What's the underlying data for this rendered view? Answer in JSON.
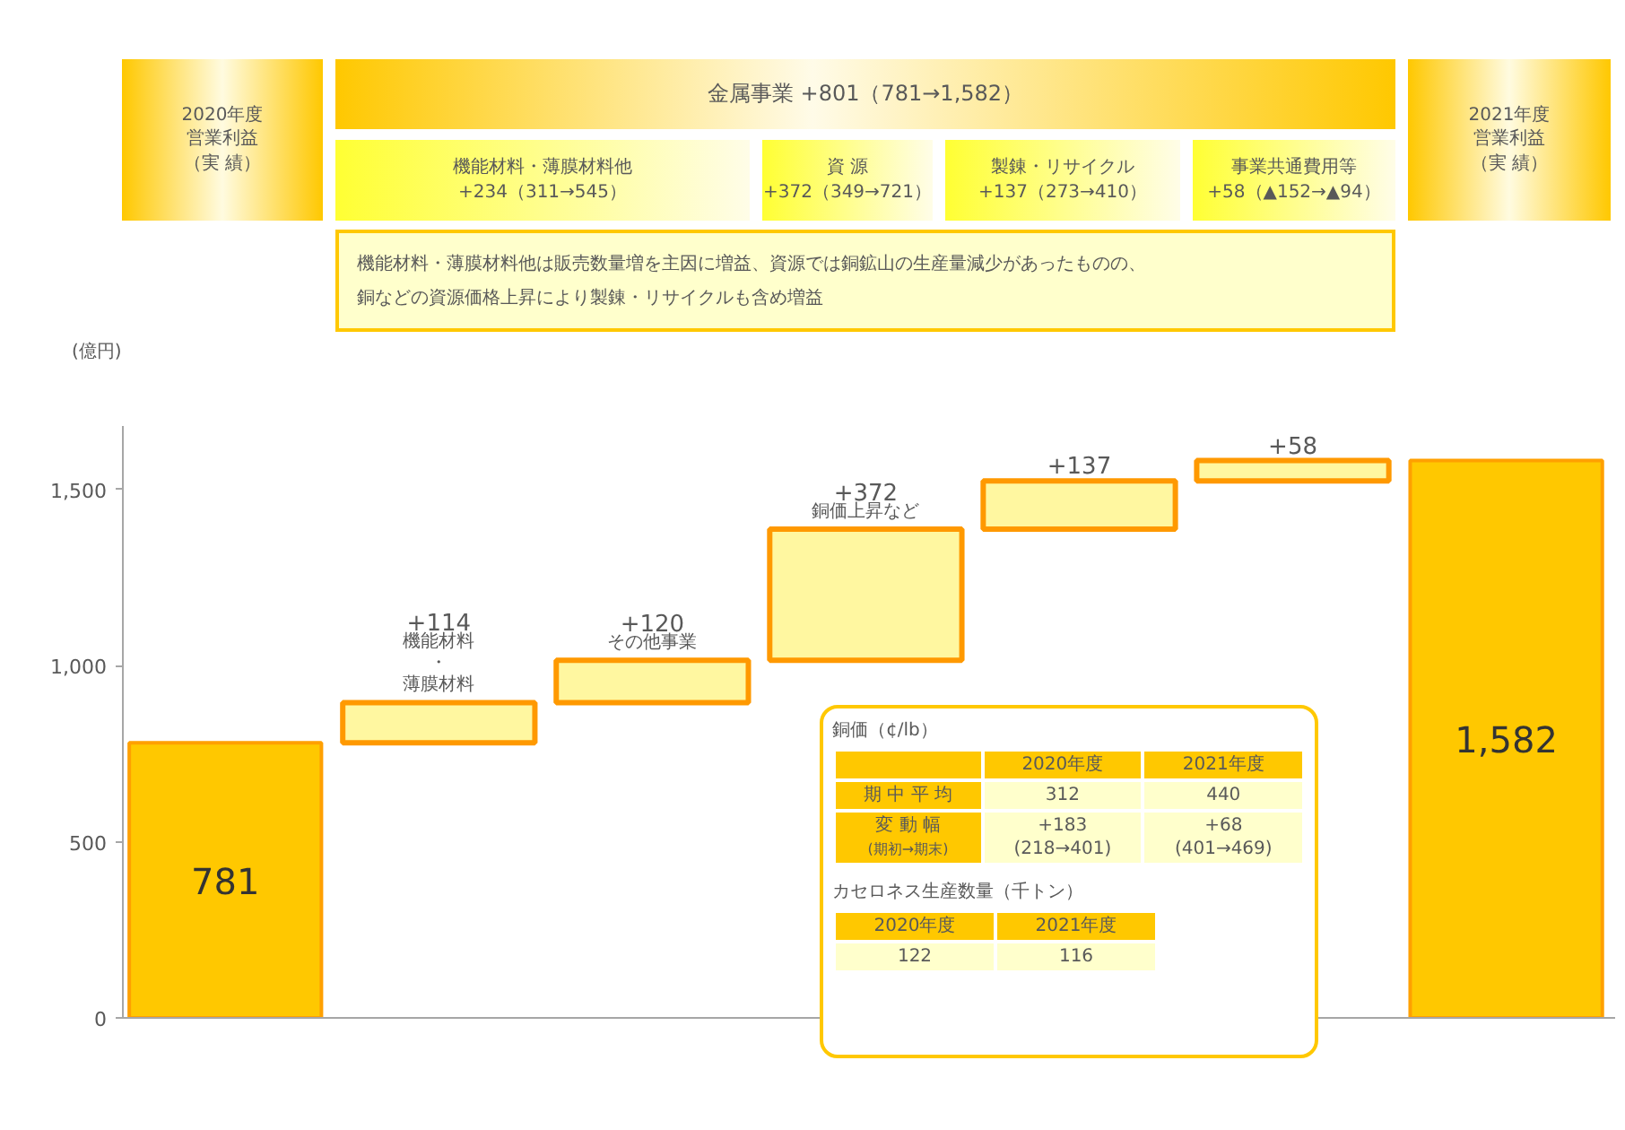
{
  "chart_data": {
    "type": "bar",
    "ylabel": "(億円)",
    "categories": [
      null,
      null,
      null,
      null,
      null,
      null,
      null
    ],
    "values": [
      781,
      114,
      120,
      372,
      137,
      58,
      1582
    ],
    "base": [
      0,
      781,
      895,
      1015,
      1387,
      1524,
      0
    ],
    "colors": [
      "#ffc800",
      "#fff7a0",
      "#fff7a0",
      "#fff7a0",
      "#fff7a0",
      "#fff7a0",
      "#ffc800"
    ],
    "value_labels": [
      "781",
      "+114",
      "+120",
      "+372",
      "+137",
      "+58",
      "1,582"
    ],
    "ylim": [
      0,
      1680
    ],
    "yticks": [
      0,
      500,
      {
        "value": 1000,
        "label": "1,000"
      },
      {
        "value": 1500,
        "label": "1,500"
      }
    ],
    "grid": false,
    "annotations": [
      "2020年度",
      "営業利益",
      "（実 績）",
      "金属事業 +801（781→1,582）",
      "機能材料・薄膜材料他\n+234（311→545）",
      "資 源\n+372（349→721）",
      "製錬・リサイクル\n+137（273→410）",
      "事業共通費用等\n+58（▲152→▲94）",
      "2021年度",
      "営業利益",
      "（実 績）",
      "機能材料・薄膜材料他は販売数量増を主因に増益、資源では銅鉱山の生産量減少があったものの、銅などの資源価格上昇により製錬・リサイクルも含め増益",
      "機能材料",
      "・",
      "薄膜材料",
      "その他事業",
      "銅価上昇など",
      "銅価（¢/lb）",
      "2020年度",
      "2021年度",
      "期 中 平 均",
      "312",
      "440",
      "変 動 幅",
      "(期初→期末)",
      "+183\n(218→401)",
      "+68\n(401→469)",
      "カセロネス生産数量（千トン）",
      "2020年度",
      "2021年度",
      "122",
      "116"
    ]
  }
}
